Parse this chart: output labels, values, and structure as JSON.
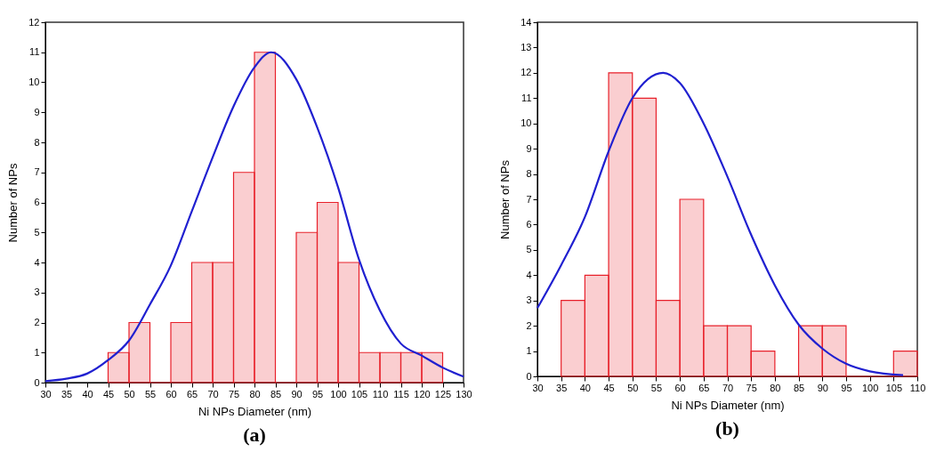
{
  "chart_data": [
    {
      "type": "histogram",
      "xlabel": "Ni NPs Diameter (nm)",
      "ylabel": "Number of NPs",
      "annotations": [
        "(a)"
      ],
      "xlim": [
        30,
        130
      ],
      "xticks": [
        30,
        35,
        40,
        45,
        50,
        55,
        60,
        65,
        70,
        75,
        80,
        85,
        90,
        95,
        100,
        105,
        110,
        115,
        120,
        125,
        130
      ],
      "ylim": [
        0,
        12
      ],
      "yticks": [
        0,
        1,
        2,
        3,
        4,
        5,
        6,
        7,
        8,
        9,
        10,
        11,
        12
      ],
      "grid": false,
      "series": [
        {
          "color": "#e8202a",
          "bins": [
            45,
            50,
            55,
            60,
            65,
            70,
            75,
            80,
            85,
            90,
            95,
            100,
            105,
            110,
            115,
            120,
            125
          ],
          "values": [
            1,
            2,
            0,
            2,
            4,
            4,
            7,
            11,
            0,
            5,
            6,
            4,
            1,
            1,
            1,
            1
          ]
        },
        {
          "type": "line",
          "color": "#2020d0",
          "x": [
            30,
            35,
            40,
            45,
            50,
            55,
            60,
            65,
            70,
            75,
            80,
            84,
            90,
            95,
            100,
            105,
            110,
            115,
            120,
            125,
            130
          ],
          "values": [
            0.05,
            0.13,
            0.3,
            0.75,
            1.4,
            2.6,
            3.9,
            5.7,
            7.5,
            9.2,
            10.5,
            11,
            10.1,
            8.5,
            6.5,
            4.1,
            2.4,
            1.3,
            0.9,
            0.5,
            0.2
          ]
        }
      ]
    },
    {
      "type": "histogram",
      "xlabel": "Ni NPs Diameter (nm)",
      "ylabel": "Number of NPs",
      "annotations": [
        "(b)"
      ],
      "xlim": [
        30,
        110
      ],
      "xticks": [
        30,
        35,
        40,
        45,
        50,
        55,
        60,
        65,
        70,
        75,
        80,
        85,
        90,
        95,
        100,
        105,
        110
      ],
      "ylim": [
        0,
        14
      ],
      "yticks": [
        0,
        1,
        2,
        3,
        4,
        5,
        6,
        7,
        8,
        9,
        10,
        11,
        12,
        13,
        14
      ],
      "grid": false,
      "series": [
        {
          "color": "#e8202a",
          "bins": [
            35,
            40,
            45,
            50,
            55,
            60,
            65,
            70,
            75,
            80,
            85,
            90,
            95,
            100,
            105,
            110
          ],
          "values": [
            3,
            4,
            12,
            11,
            3,
            7,
            2,
            2,
            1,
            0,
            2,
            2,
            0,
            0,
            1
          ]
        },
        {
          "type": "line",
          "color": "#2020d0",
          "x": [
            30,
            35,
            40,
            45,
            50,
            56.5,
            60,
            65,
            70,
            75,
            80,
            85,
            90,
            95,
            100,
            107
          ],
          "values": [
            2.7,
            4.4,
            6.3,
            8.9,
            11,
            12,
            11.6,
            10,
            7.9,
            5.6,
            3.6,
            2.05,
            1.1,
            0.5,
            0.2,
            0.05
          ]
        }
      ]
    }
  ]
}
